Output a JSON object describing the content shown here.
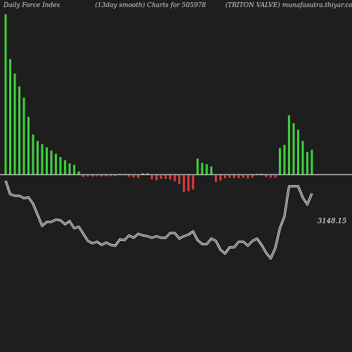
{
  "header": {
    "left": "Daily Force  Index",
    "center": "(13day smooth) Charts for 505978",
    "right": "(TRITON VALVE) munafasutra.thiyar.com"
  },
  "colors": {
    "background": "#1e1e1e",
    "positive_bar": "#3fd33f",
    "negative_bar": "#e03c3c",
    "price_line": "#ffffff",
    "zero_line": "#ffffff"
  },
  "chart_data": [
    {
      "type": "bar",
      "name": "force-index",
      "zero_baseline": true,
      "values": [
        100,
        72,
        63,
        55,
        48,
        36,
        25,
        21,
        19,
        17,
        15,
        13,
        11,
        9,
        7,
        6,
        2,
        -1,
        -0.8,
        -0.8,
        -0.6,
        -0.8,
        -0.7,
        -0.5,
        -0.4,
        0.3,
        0.4,
        -1,
        -1.5,
        -1.7,
        0.8,
        0.8,
        -2.5,
        -3,
        -2.2,
        -2.2,
        -2.6,
        -3.8,
        -5.5,
        -10.5,
        -10,
        -9,
        10,
        7.3,
        6.5,
        5,
        -4.2,
        -3.3,
        -1.8,
        -1.5,
        -1.7,
        -1.7,
        -1.5,
        -1.9,
        -1.5,
        0.3,
        0.5,
        -1.1,
        -1.4,
        -1.5,
        16.5,
        18.5,
        37,
        32,
        28,
        21,
        14,
        15.5
      ],
      "ylim": [
        -12,
        101
      ]
    },
    {
      "type": "line",
      "name": "price",
      "values": [
        -4,
        13,
        15,
        15,
        18,
        17,
        25,
        39,
        53,
        48,
        48,
        45,
        46,
        51,
        47,
        56,
        54,
        63,
        72,
        75,
        73,
        77,
        74,
        77,
        78,
        70,
        71,
        65,
        68,
        63,
        65,
        66,
        68,
        66,
        68,
        68,
        62,
        62,
        69,
        66,
        64,
        60,
        71,
        76,
        76,
        69,
        72,
        83,
        88,
        80,
        80,
        73,
        73,
        78,
        72,
        69,
        77,
        87,
        94,
        81,
        56,
        41,
        3,
        3,
        3,
        17,
        26,
        12
      ],
      "ylim": [
        -10,
        110
      ],
      "last_value_label": "3148.15"
    }
  ]
}
